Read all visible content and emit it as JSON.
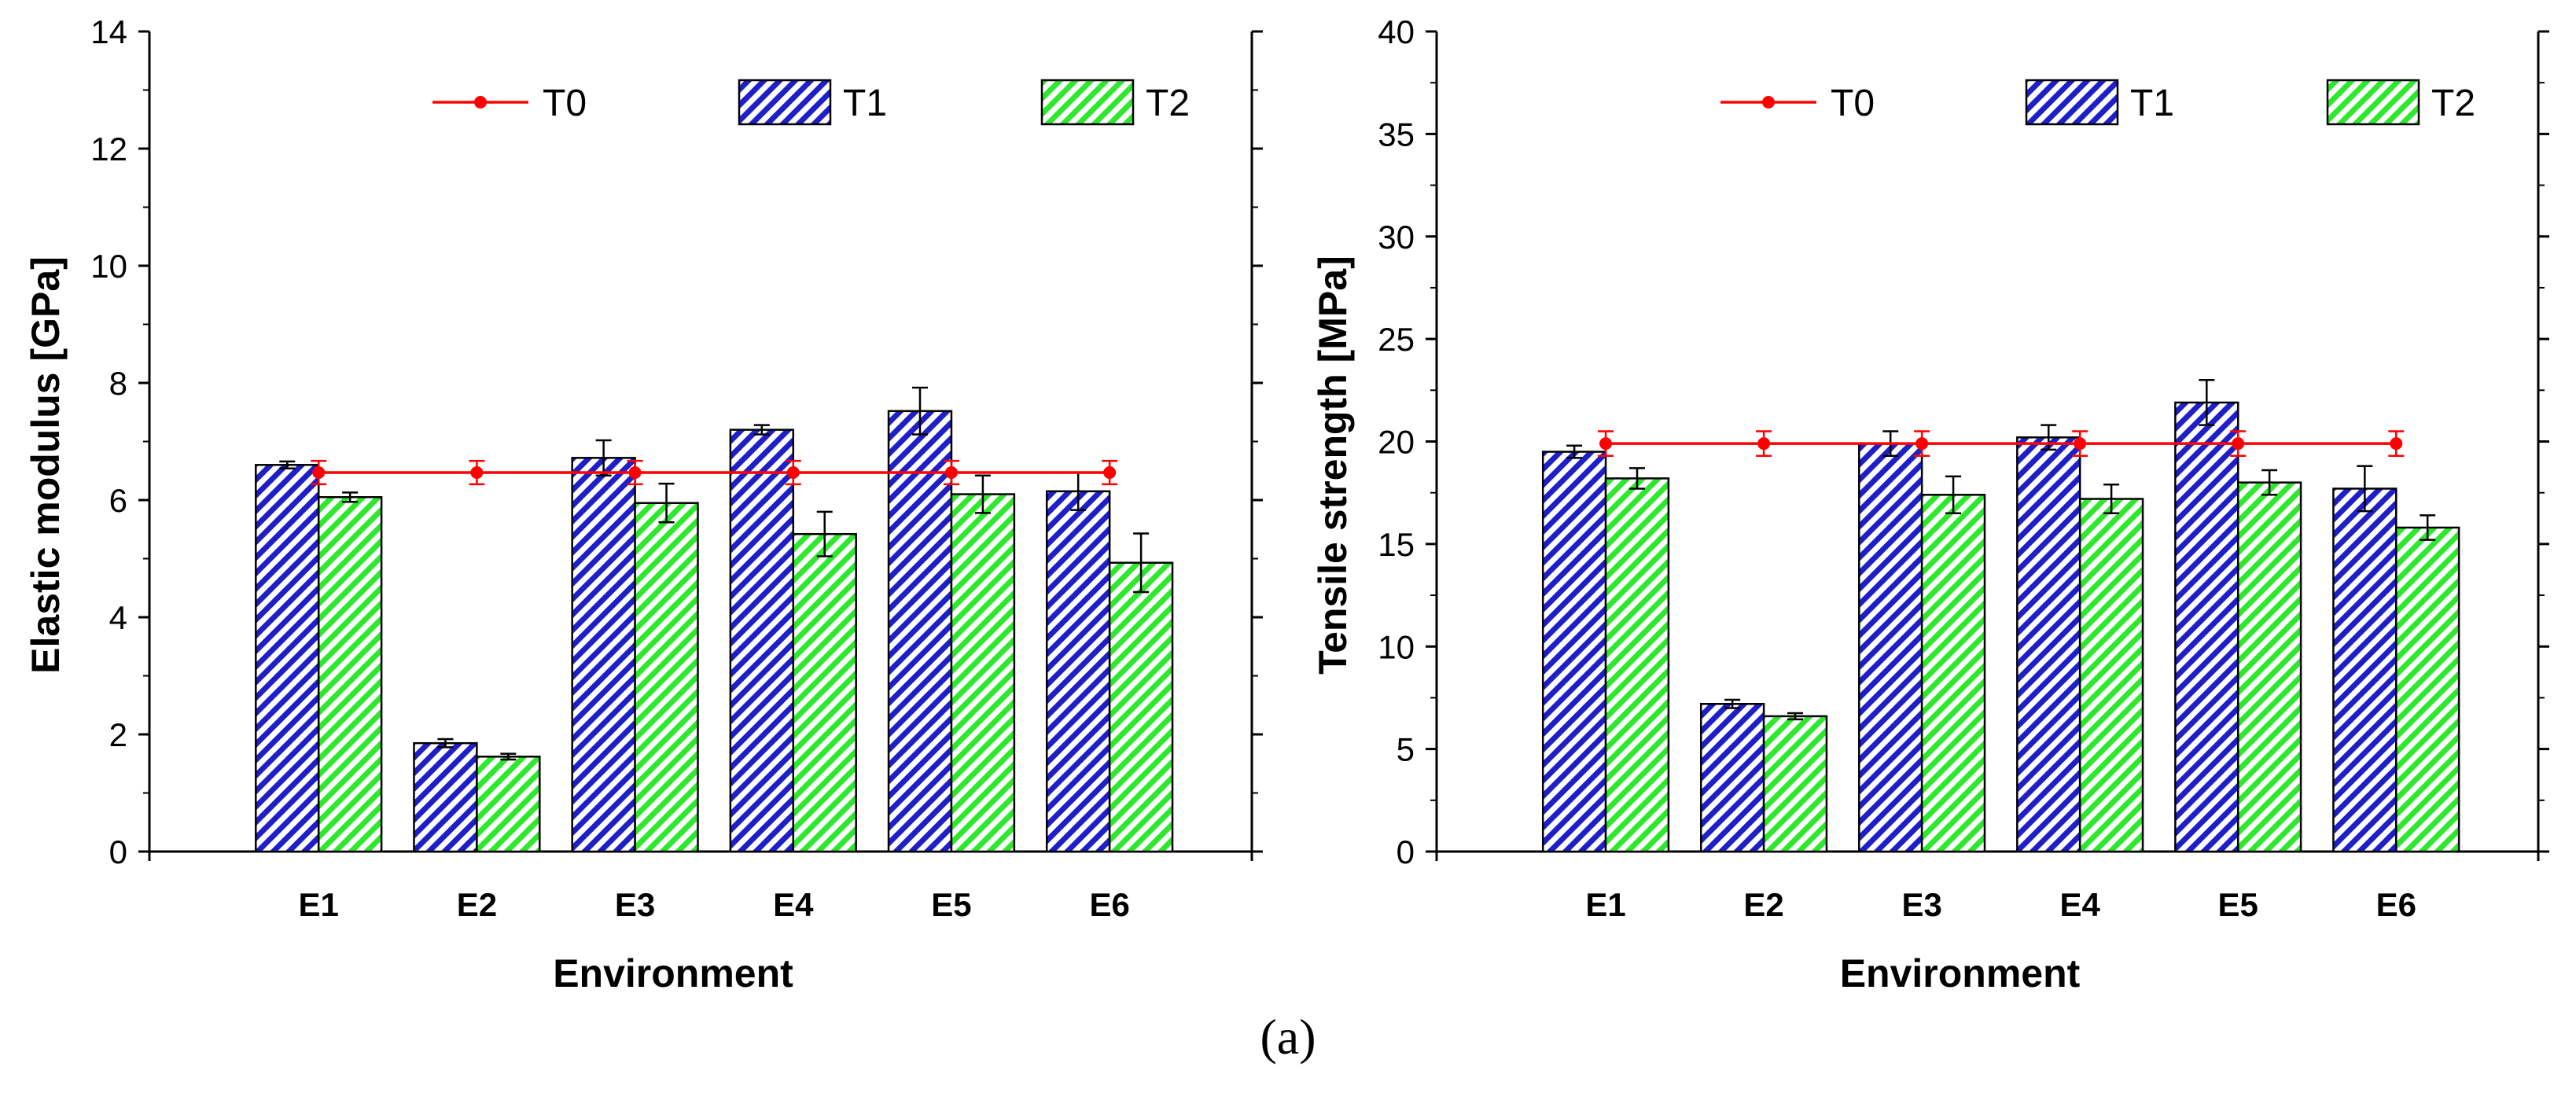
{
  "figure_caption": "(a)",
  "colors": {
    "t0": "#ff0000",
    "t1_stripe": "#1f1fc8",
    "t2_stripe": "#2ee82e",
    "axis": "#000000"
  },
  "chart_data": [
    {
      "type": "bar",
      "title": "",
      "xlabel": "Environment",
      "ylabel": "Elastic modulus [GPa]",
      "ylim": [
        0,
        14
      ],
      "yticks": [
        0,
        2,
        4,
        6,
        8,
        10,
        12,
        14
      ],
      "categories": [
        "E1",
        "E2",
        "E3",
        "E4",
        "E5",
        "E6"
      ],
      "legend": [
        "T0",
        "T1",
        "T2"
      ],
      "line": {
        "name": "T0",
        "x": [
          "E1",
          "E2",
          "E3",
          "E4",
          "E5",
          "E6"
        ],
        "values": [
          6.47,
          6.47,
          6.47,
          6.47,
          6.47,
          6.47
        ],
        "errors": [
          0.2,
          0.2,
          0.2,
          0.2,
          0.2,
          0.2
        ]
      },
      "series": [
        {
          "name": "T1",
          "values": [
            6.6,
            1.85,
            6.72,
            7.2,
            7.52,
            6.15
          ],
          "errors": [
            0.06,
            0.07,
            0.3,
            0.08,
            0.4,
            0.32
          ]
        },
        {
          "name": "T2",
          "values": [
            6.05,
            1.62,
            5.95,
            5.42,
            6.1,
            4.93
          ],
          "errors": [
            0.08,
            0.05,
            0.33,
            0.38,
            0.32,
            0.5
          ]
        }
      ]
    },
    {
      "type": "bar",
      "title": "",
      "xlabel": "Environment",
      "ylabel": "Tensile strength [MPa]",
      "ylim": [
        0,
        40
      ],
      "yticks": [
        0,
        5,
        10,
        15,
        20,
        25,
        30,
        35,
        40
      ],
      "categories": [
        "E1",
        "E2",
        "E3",
        "E4",
        "E5",
        "E6"
      ],
      "legend": [
        "T0",
        "T1",
        "T2"
      ],
      "line": {
        "name": "T0",
        "x": [
          "E1",
          "E2",
          "E3",
          "E4",
          "E5",
          "E6"
        ],
        "values": [
          19.9,
          19.9,
          19.9,
          19.9,
          19.9,
          19.9
        ],
        "errors": [
          0.6,
          0.6,
          0.6,
          0.6,
          0.6,
          0.6
        ]
      },
      "series": [
        {
          "name": "T1",
          "values": [
            19.5,
            7.2,
            19.9,
            20.2,
            21.9,
            17.7
          ],
          "errors": [
            0.3,
            0.2,
            0.6,
            0.6,
            1.1,
            1.1
          ]
        },
        {
          "name": "T2",
          "values": [
            18.2,
            6.6,
            17.4,
            17.2,
            18.0,
            15.8
          ],
          "errors": [
            0.5,
            0.15,
            0.9,
            0.7,
            0.6,
            0.6
          ]
        }
      ]
    }
  ]
}
